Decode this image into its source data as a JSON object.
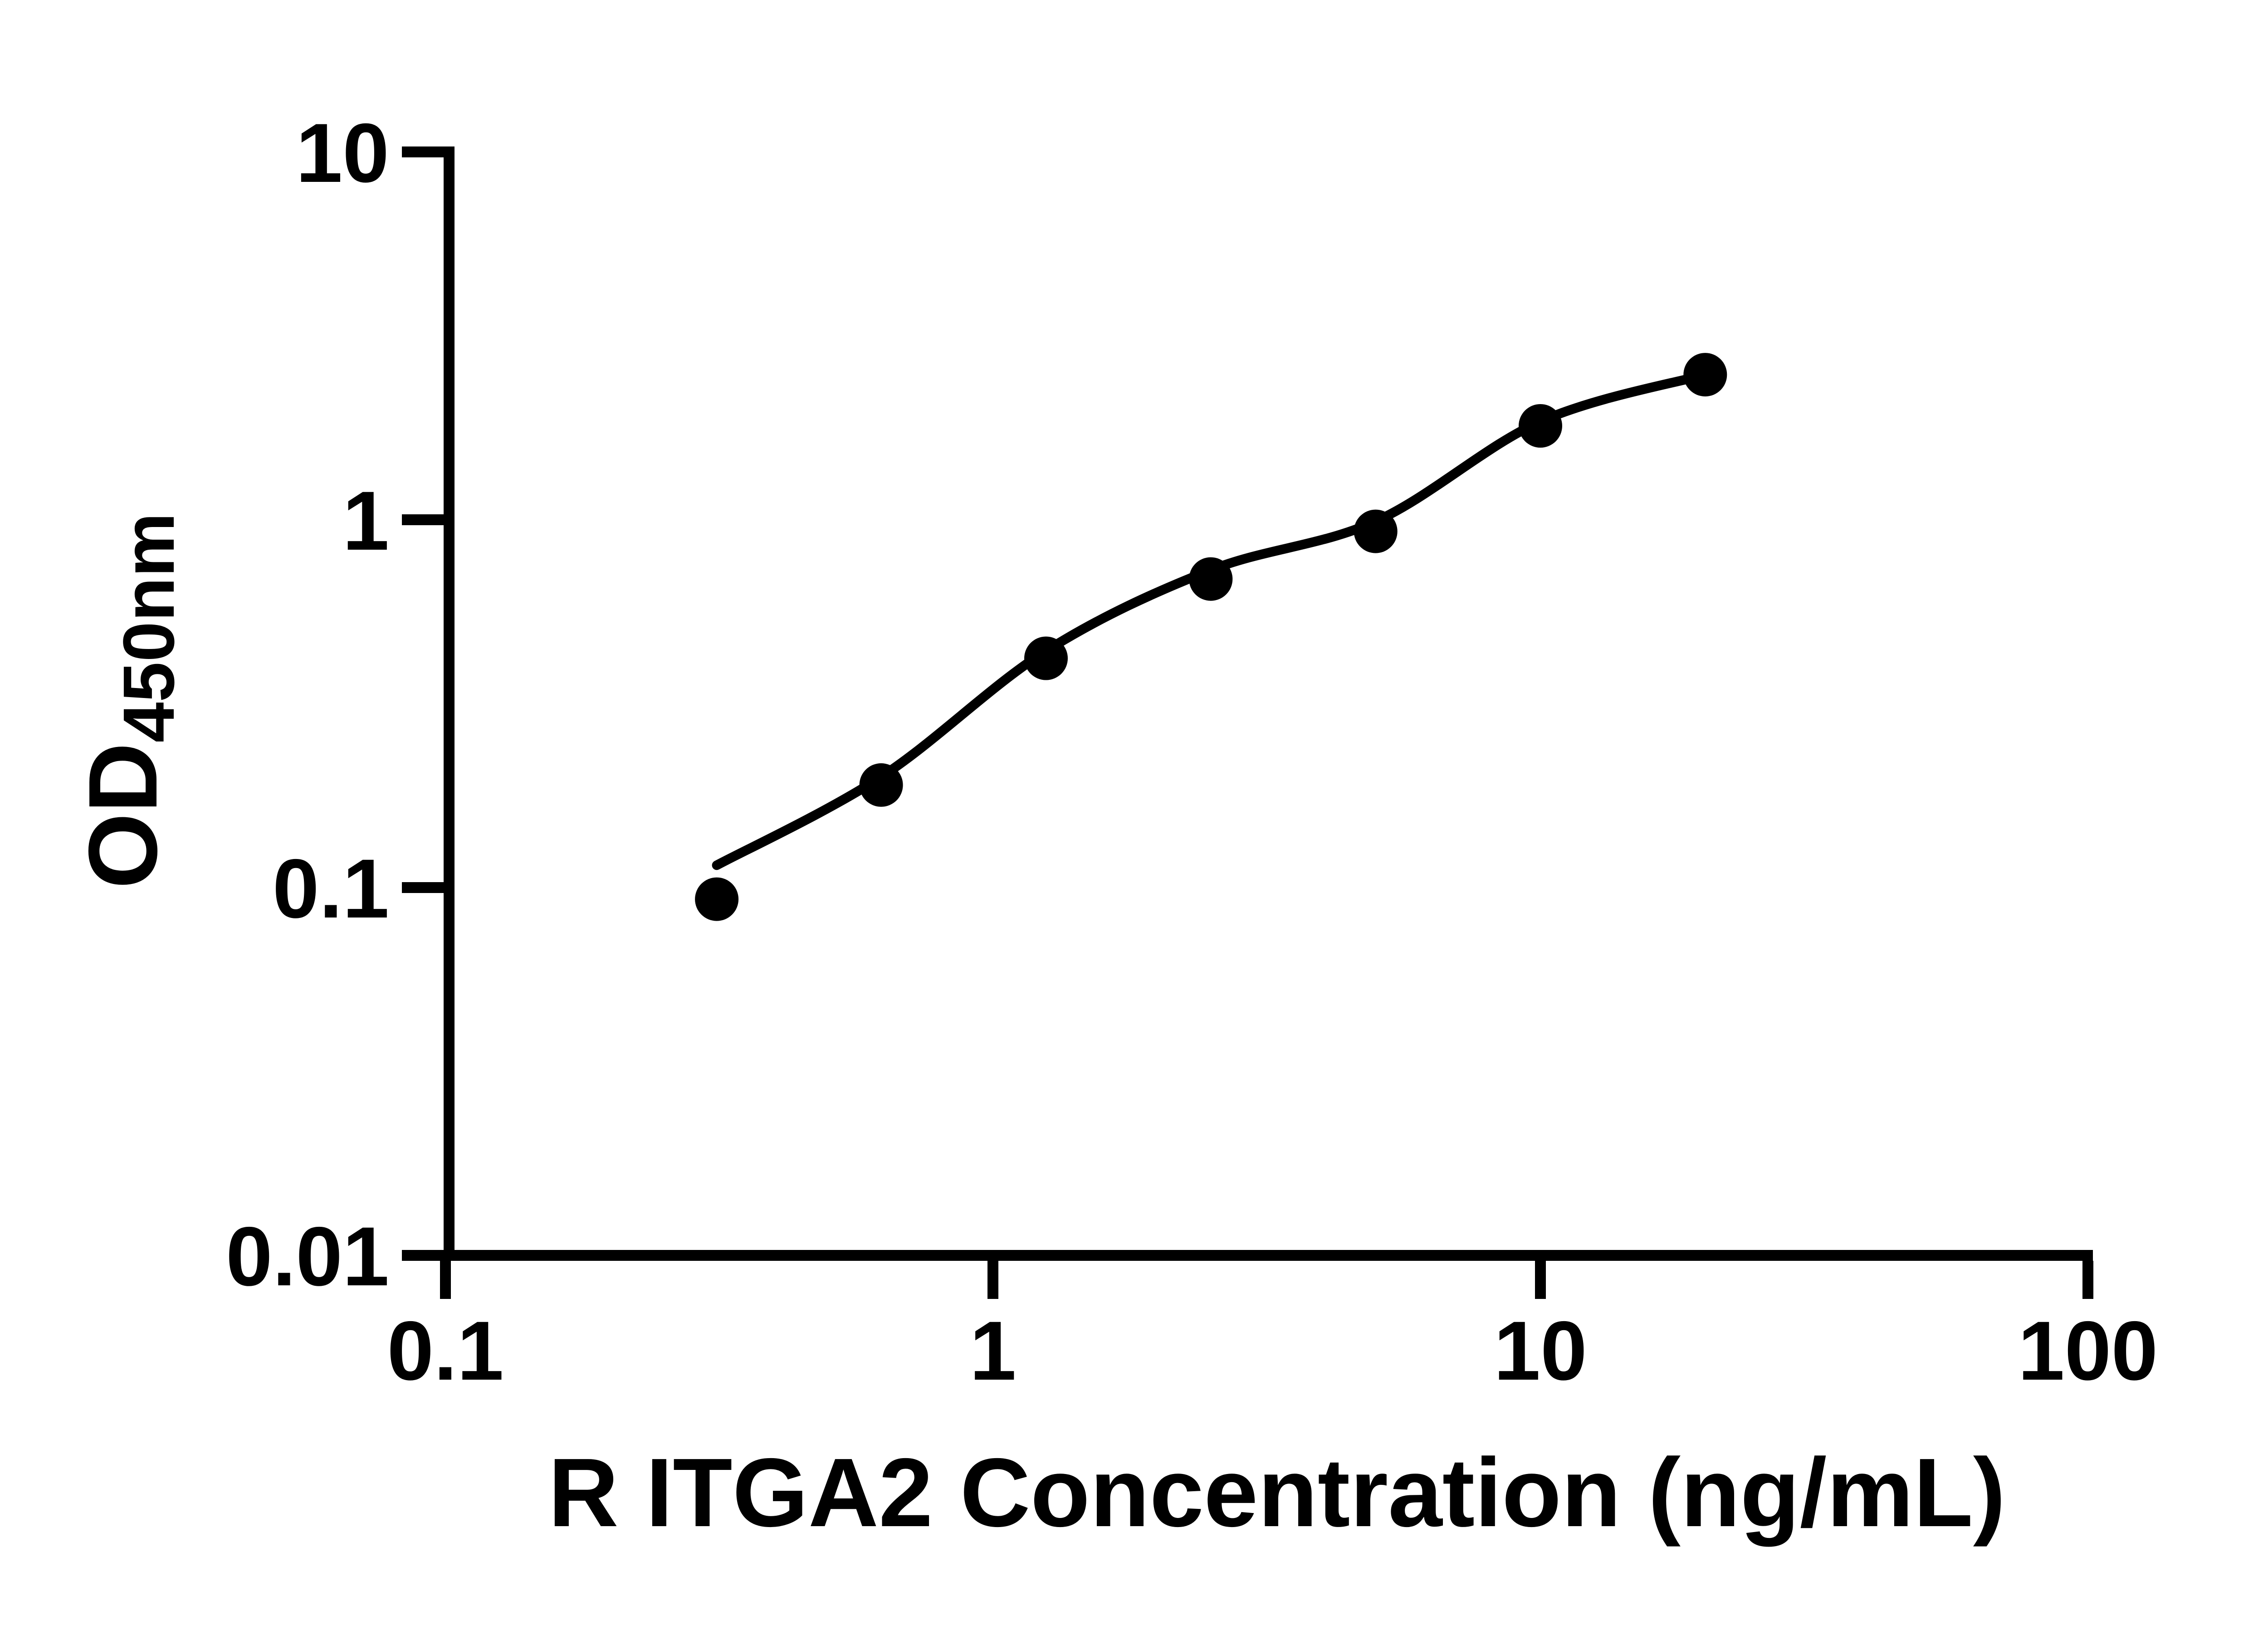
{
  "colors": {
    "ink": "#000000",
    "background": "#ffffff"
  },
  "chart_data": {
    "type": "scatter",
    "title": "",
    "xlabel": "R ITGA2 Concentration (ng/mL)",
    "ylabel_main": "OD",
    "ylabel_sub": "450nm",
    "x_scale": "log",
    "y_scale": "log",
    "xlim": [
      0.1,
      100
    ],
    "ylim": [
      0.01,
      10
    ],
    "grid": false,
    "legend": false,
    "x_ticks": [
      {
        "value": 0.1,
        "label": "0.1"
      },
      {
        "value": 1,
        "label": "1"
      },
      {
        "value": 10,
        "label": "10"
      },
      {
        "value": 100,
        "label": "100"
      }
    ],
    "y_ticks": [
      {
        "value": 10,
        "label": "10"
      },
      {
        "value": 1,
        "label": "1"
      },
      {
        "value": 0.1,
        "label": "0.1"
      },
      {
        "value": 0.01,
        "label": "0.01"
      }
    ],
    "series": [
      {
        "name": "standard-points",
        "kind": "scatter",
        "marker": "filled-circle",
        "color": "#000000",
        "points": [
          {
            "x": 0.313,
            "y": 0.093
          },
          {
            "x": 0.625,
            "y": 0.19
          },
          {
            "x": 1.25,
            "y": 0.42
          },
          {
            "x": 2.5,
            "y": 0.69
          },
          {
            "x": 5,
            "y": 0.93
          },
          {
            "x": 10,
            "y": 1.8
          },
          {
            "x": 20,
            "y": 2.48
          }
        ]
      },
      {
        "name": "fit-curve",
        "kind": "line",
        "color": "#000000",
        "points": [
          {
            "x": 0.313,
            "y": 0.115
          },
          {
            "x": 0.625,
            "y": 0.2
          },
          {
            "x": 1.25,
            "y": 0.44
          },
          {
            "x": 2.5,
            "y": 0.73
          },
          {
            "x": 5,
            "y": 0.99
          },
          {
            "x": 10,
            "y": 1.85
          },
          {
            "x": 20,
            "y": 2.48
          }
        ]
      }
    ]
  }
}
